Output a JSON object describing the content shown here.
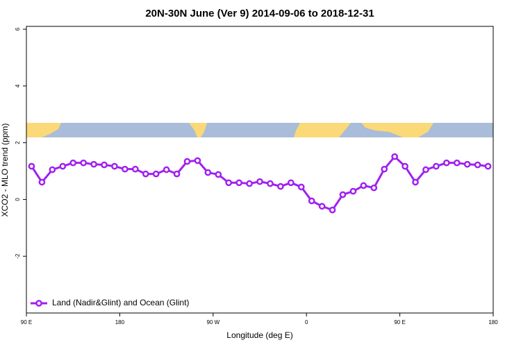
{
  "chart_data": {
    "type": "line",
    "title": "20N-30N June (Ver 9)   2014-09-06 to 2018-12-31",
    "xlabel": "Longitude (deg E)",
    "ylabel": "XCO2 - MLO trend (ppm)",
    "x": [
      95,
      105,
      115,
      125,
      135,
      145,
      155,
      165,
      175,
      185,
      195,
      205,
      215,
      225,
      235,
      245,
      255,
      265,
      275,
      285,
      295,
      305,
      315,
      325,
      335,
      345,
      355,
      365,
      375,
      385,
      395,
      405,
      415,
      425,
      435,
      445,
      455,
      465,
      475,
      485,
      495,
      505,
      515,
      525,
      535
    ],
    "series": [
      {
        "name": "Land (Nadir&Glint) and Ocean (Glint)",
        "color": "#a020f0",
        "values": [
          1.17,
          0.61,
          1.05,
          1.17,
          1.29,
          1.29,
          1.24,
          1.22,
          1.17,
          1.07,
          1.07,
          0.9,
          0.9,
          1.05,
          0.9,
          1.34,
          1.37,
          0.95,
          0.88,
          0.59,
          0.59,
          0.56,
          0.63,
          0.56,
          0.46,
          0.59,
          0.44,
          -0.05,
          -0.24,
          -0.37,
          0.17,
          0.29,
          0.49,
          0.41,
          1.07,
          1.51,
          1.17,
          0.61,
          1.05,
          1.17,
          1.29,
          1.29,
          1.24,
          1.22,
          1.17
        ]
      }
    ],
    "xlim": [
      90,
      540
    ],
    "xticks": [
      {
        "value": 90,
        "label": "90 E"
      },
      180,
      {
        "value": 270,
        "label": "90 W"
      },
      {
        "value": 360,
        "label": "0"
      },
      {
        "value": 450,
        "label": "90 E"
      },
      {
        "value": 540,
        "label": "180"
      }
    ],
    "ylim": [
      -4,
      6.1
    ],
    "yticks": [
      -2,
      0,
      2,
      4,
      6
    ],
    "legend": "bottom-left"
  }
}
